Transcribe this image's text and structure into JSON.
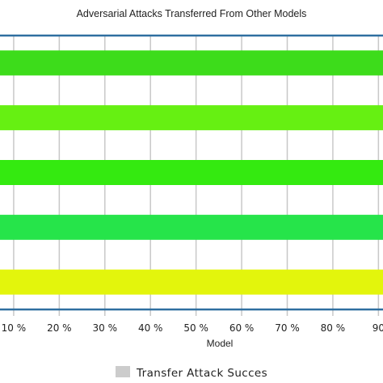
{
  "chart_data": {
    "type": "bar",
    "orientation": "horizontal",
    "title": "Adversarial Attacks Transferred From Other Models",
    "xlabel": "Model",
    "ylabel": "",
    "x_ticks": [
      "10 %",
      "20 %",
      "30 %",
      "40 %",
      "50 %",
      "60 %",
      "70 %",
      "80 %",
      "90"
    ],
    "tick_values": [
      10,
      20,
      30,
      40,
      50,
      60,
      70,
      80,
      90
    ],
    "xlim": [
      7,
      91
    ],
    "categories": [
      "",
      "",
      "",
      "",
      ""
    ],
    "values": [
      91,
      91,
      91,
      91,
      91
    ],
    "bar_colors": [
      "#3ddc1b",
      "#66f012",
      "#34ea10",
      "#26e44a",
      "#e3f50c"
    ],
    "series": [
      {
        "name": "Transfer Attack Succes",
        "values": [
          91,
          91,
          91,
          91,
          91
        ]
      }
    ],
    "legend": {
      "position": "bottom-center",
      "label": "Transfer Attack Succes",
      "swatch_color": "#cccccc"
    },
    "grid": true,
    "colors": {
      "frame": "#2f6fa0",
      "grid": "#c8c8c8",
      "text": "#222222"
    }
  }
}
